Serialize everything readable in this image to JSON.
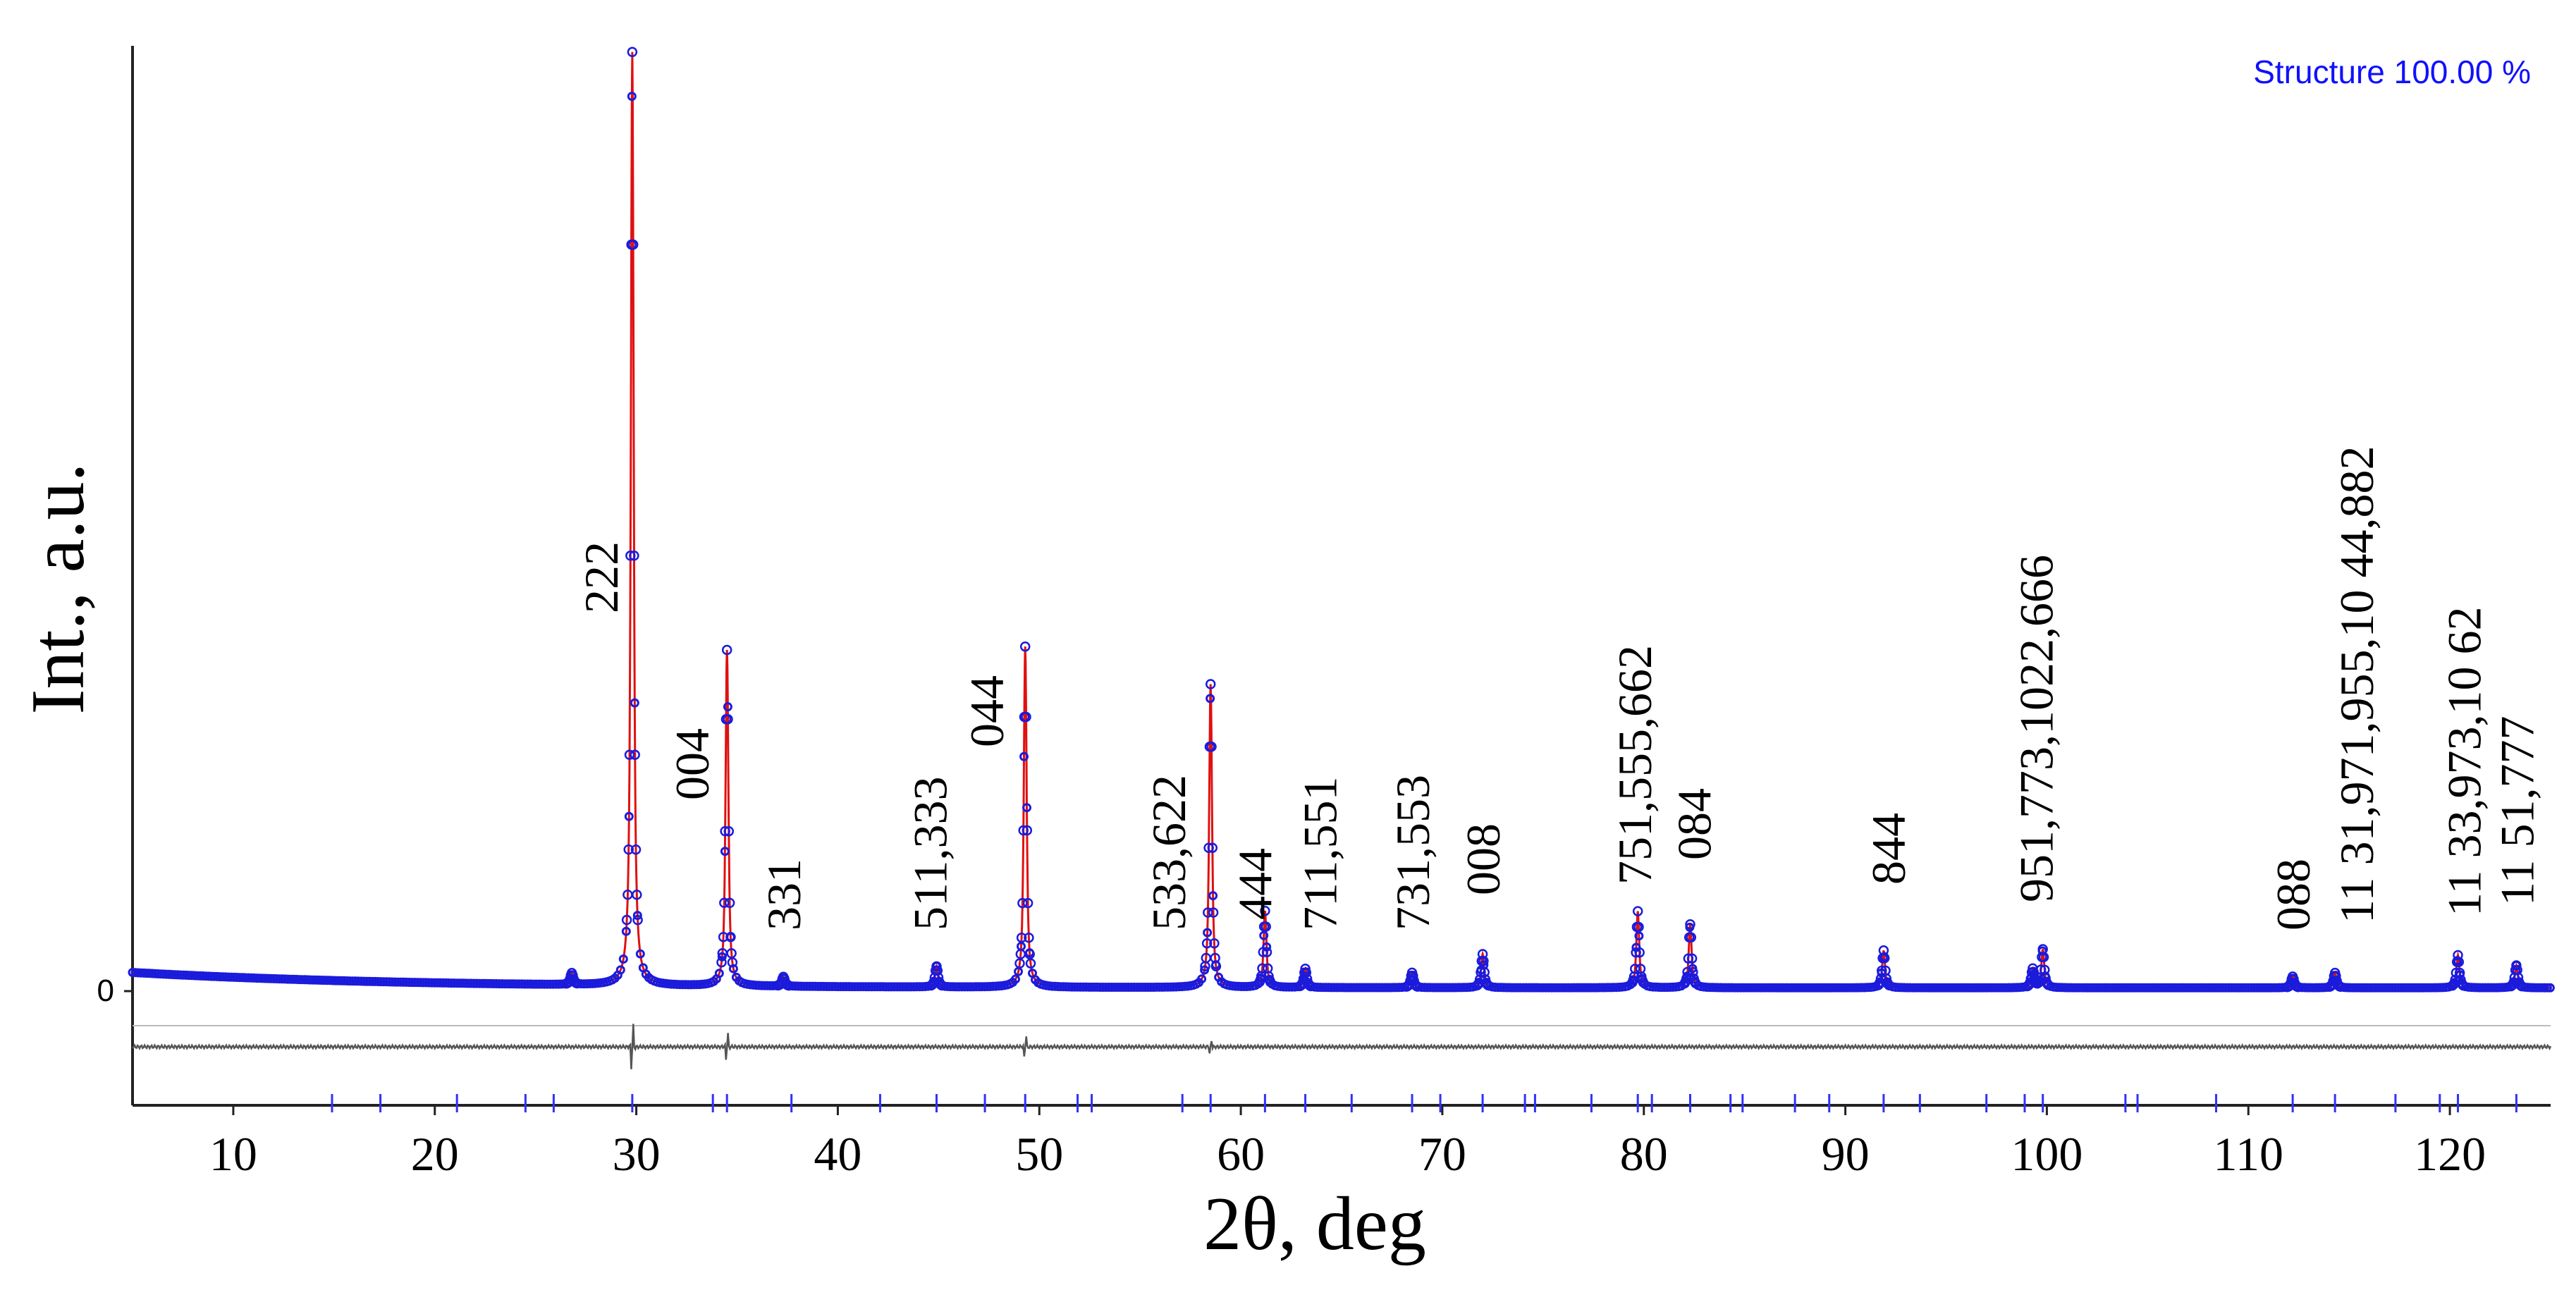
{
  "chart_data": {
    "type": "line",
    "title": "",
    "legend_text": "Structure 100.00 %",
    "xlabel": "2θ, deg",
    "ylabel": "Int., a.u.",
    "xlim": [
      5,
      125
    ],
    "ylim": [
      0,
      100
    ],
    "x_ticks": [
      {
        "value": 10,
        "label": "10"
      },
      {
        "value": 20,
        "label": "20"
      },
      {
        "value": 30,
        "label": "30"
      },
      {
        "value": 40,
        "label": "40"
      },
      {
        "value": 50,
        "label": "50"
      },
      {
        "value": 60,
        "label": "60"
      },
      {
        "value": 70,
        "label": "70"
      },
      {
        "value": 80,
        "label": "80"
      },
      {
        "value": 90,
        "label": "90"
      },
      {
        "value": 100,
        "label": "100"
      },
      {
        "value": 110,
        "label": "110"
      },
      {
        "value": 120,
        "label": "120"
      }
    ],
    "y_tick_label": "0",
    "background": {
      "start": 2.0,
      "end": 0.35
    },
    "peaks": [
      {
        "x": 26.8,
        "height": 1.2,
        "label": ""
      },
      {
        "x": 29.8,
        "height": 100,
        "label": "222"
      },
      {
        "x": 34.5,
        "height": 36,
        "label": "004"
      },
      {
        "x": 37.3,
        "height": 1.0,
        "label": "331"
      },
      {
        "x": 44.9,
        "height": 2.2,
        "label": "511,333"
      },
      {
        "x": 49.3,
        "height": 36.5,
        "label": "044"
      },
      {
        "x": 58.5,
        "height": 32.5,
        "label": "533,622"
      },
      {
        "x": 61.2,
        "height": 8.2,
        "label": "444"
      },
      {
        "x": 63.2,
        "height": 2.0,
        "label": "711,551"
      },
      {
        "x": 68.5,
        "height": 1.6,
        "label": "731,553"
      },
      {
        "x": 72.0,
        "height": 3.6,
        "label": "008"
      },
      {
        "x": 79.7,
        "height": 8.2,
        "label": "751,555,662"
      },
      {
        "x": 82.3,
        "height": 6.8,
        "label": "084"
      },
      {
        "x": 91.9,
        "height": 4.0,
        "label": "844"
      },
      {
        "x": 99.3,
        "height": 2.0,
        "label": ""
      },
      {
        "x": 99.8,
        "height": 4.1,
        "label": "951,773,1022,666"
      },
      {
        "x": 112.2,
        "height": 1.2,
        "label": "088"
      },
      {
        "x": 114.3,
        "height": 1.6,
        "label": "11 31,971,955,10 44,882"
      },
      {
        "x": 120.4,
        "height": 3.5,
        "label": "11 33,973,10 62"
      },
      {
        "x": 123.3,
        "height": 2.4,
        "label": "11 51,777"
      }
    ],
    "difference_spikes": [
      {
        "x": 29.8,
        "amplitude": 5
      },
      {
        "x": 34.5,
        "amplitude": 3
      },
      {
        "x": 49.3,
        "amplitude": 2.5
      },
      {
        "x": 58.5,
        "amplitude": 1.5
      }
    ],
    "bragg_ticks": [
      14.9,
      17.3,
      21.1,
      24.5,
      25.9,
      29.8,
      33.8,
      34.5,
      37.7,
      42.1,
      44.9,
      47.3,
      49.3,
      51.9,
      52.6,
      57.1,
      58.5,
      61.2,
      63.2,
      65.5,
      68.5,
      69.9,
      72.0,
      74.1,
      74.6,
      77.4,
      79.7,
      80.4,
      82.3,
      84.3,
      84.9,
      87.5,
      89.2,
      91.9,
      93.7,
      97.0,
      98.9,
      99.8,
      103.9,
      104.5,
      108.4,
      112.2,
      114.3,
      117.3,
      119.5,
      120.4,
      123.3
    ]
  },
  "colors": {
    "observed": "#1b1bdc",
    "calculated": "#e01010",
    "difference": "#555555",
    "bragg": "#3030ff",
    "legend": "#1010ff",
    "axis": "#222222",
    "text": "#000000"
  }
}
